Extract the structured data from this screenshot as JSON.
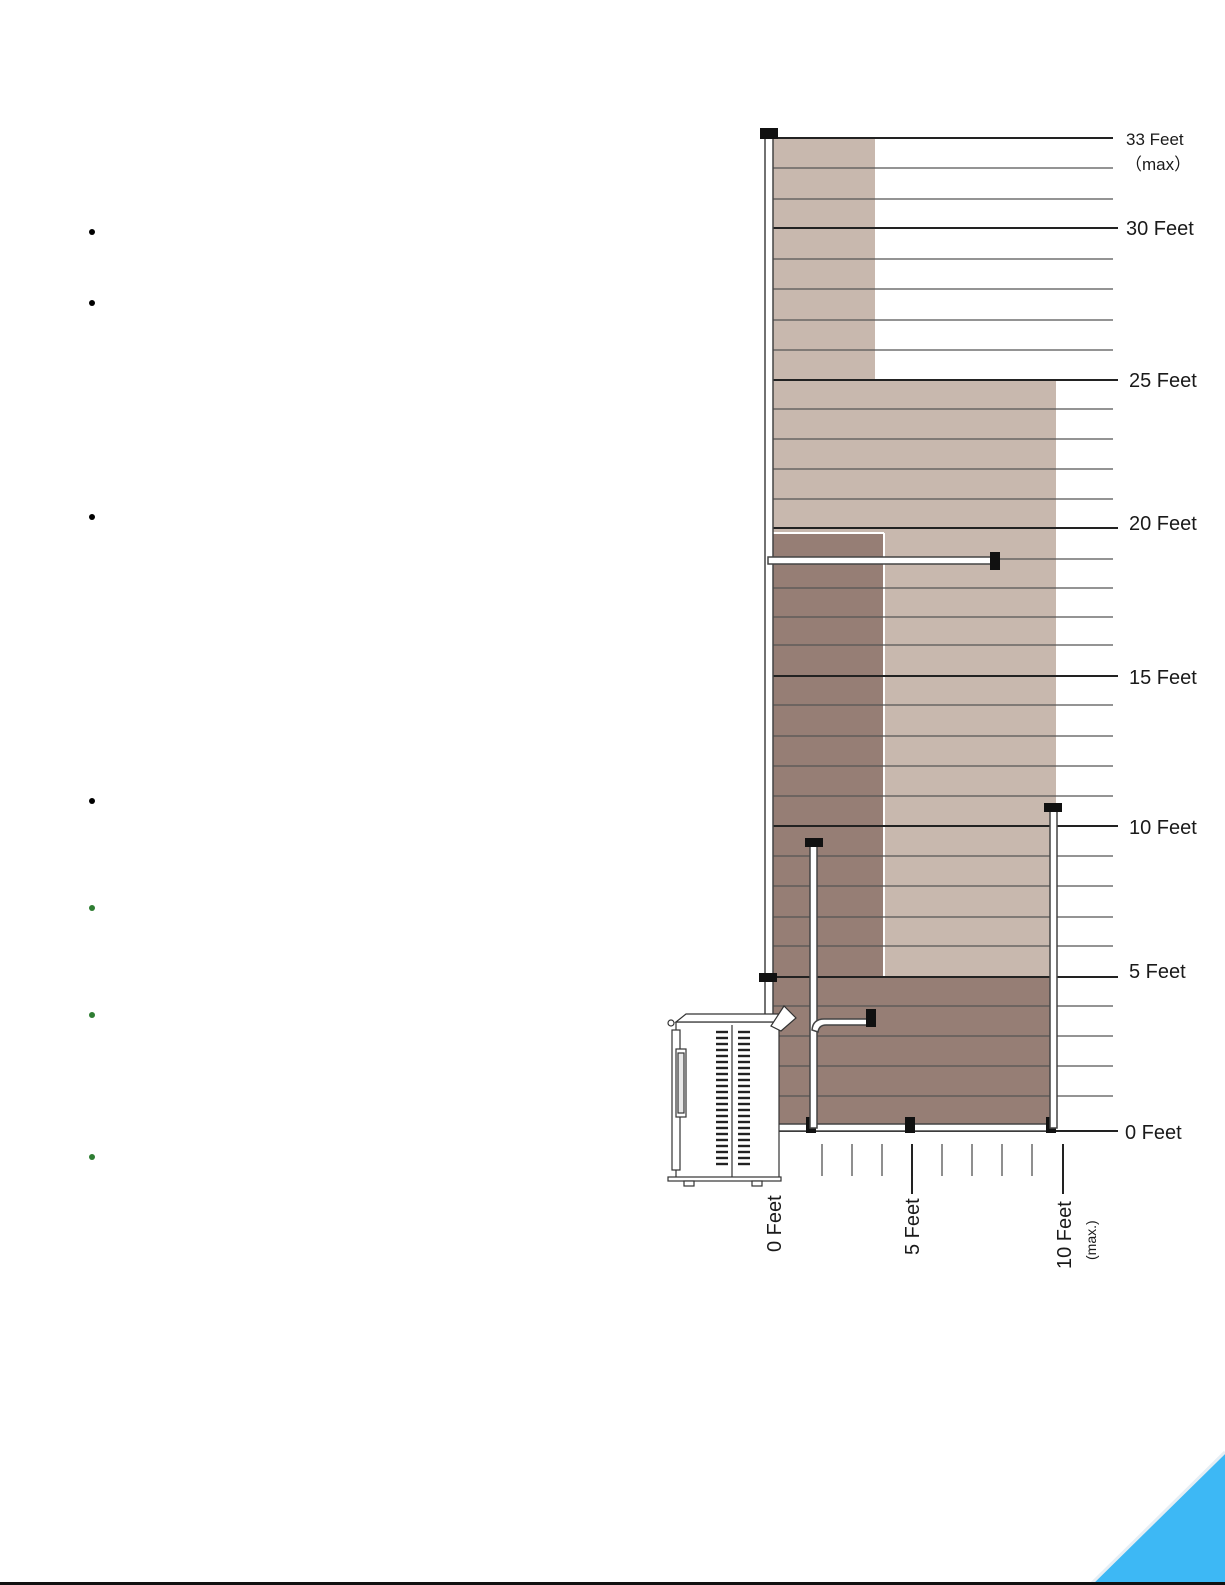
{
  "bullets": [
    {
      "color": "#000000"
    },
    {
      "color": "#000000"
    },
    {
      "color": "#000000"
    },
    {
      "color": "#000000"
    },
    {
      "color": "#2e7d32"
    },
    {
      "color": "#2e7d32"
    },
    {
      "color": "#2e7d32"
    }
  ],
  "diagram": {
    "vertical_labels": {
      "ft33": "33 Feet",
      "max": "（max）",
      "ft30": "30 Feet",
      "ft25": "25 Feet",
      "ft20": "20 Feet",
      "ft15": "15 Feet",
      "ft10": "10 Feet",
      "ft5": "5 Feet",
      "ft0": "0 Feet"
    },
    "horizontal_labels": {
      "ft0": "0 Feet",
      "ft5": "5 Feet",
      "ft10": "10 Feet",
      "max": "(max.)"
    },
    "colors": {
      "light_zone": "#c8b8ae",
      "dark_zone": "#967e75",
      "accent_corner": "#3db8f5"
    }
  }
}
